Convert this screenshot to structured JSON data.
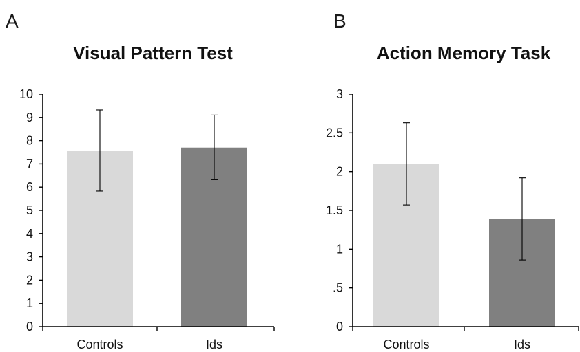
{
  "chart_data": [
    {
      "panel_letter": "A",
      "type": "bar",
      "title": "Visual Pattern Test",
      "categories": [
        "Controls",
        "Ids"
      ],
      "values": [
        7.55,
        7.7
      ],
      "error_low": [
        5.83,
        6.32
      ],
      "error_high": [
        9.32,
        9.1
      ],
      "bar_colors": [
        "#d9d9d9",
        "#808080"
      ],
      "ylim": [
        0,
        10
      ],
      "yticks": [
        0,
        1,
        2,
        3,
        4,
        5,
        6,
        7,
        8,
        9,
        10
      ],
      "ytick_labels": [
        "0",
        "1",
        "2",
        "3",
        "4",
        "5",
        "6",
        "7",
        "8",
        "9",
        "10"
      ],
      "xlabel": "",
      "ylabel": "",
      "grid": false,
      "legend": false
    },
    {
      "panel_letter": "B",
      "type": "bar",
      "title": "Action Memory Task",
      "categories": [
        "Controls",
        "Ids"
      ],
      "values": [
        2.1,
        1.39
      ],
      "error_low": [
        1.57,
        0.86
      ],
      "error_high": [
        2.63,
        1.92
      ],
      "bar_colors": [
        "#d9d9d9",
        "#808080"
      ],
      "ylim": [
        0,
        3
      ],
      "yticks": [
        0,
        0.5,
        1,
        1.5,
        2,
        2.5,
        3
      ],
      "ytick_labels": [
        "0",
        ".5",
        "1",
        "1.5",
        "2",
        "2.5",
        "3"
      ],
      "xlabel": "",
      "ylabel": "",
      "grid": false,
      "legend": false
    }
  ]
}
